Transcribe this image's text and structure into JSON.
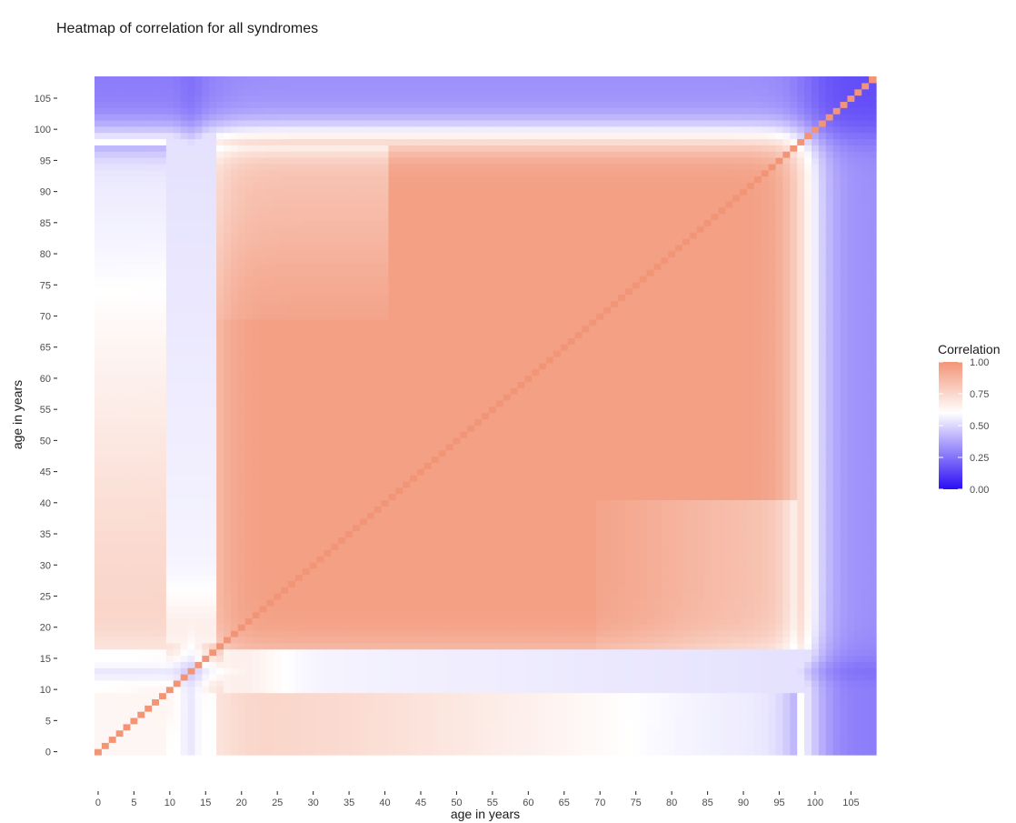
{
  "chart_data": {
    "type": "heatmap",
    "title": "Heatmap of correlation for all syndromes",
    "xlabel": "age in years",
    "ylabel": "age in years",
    "x_range": [
      0,
      108
    ],
    "y_range": [
      0,
      108
    ],
    "x_ticks": [
      0,
      5,
      10,
      15,
      20,
      25,
      30,
      35,
      40,
      45,
      50,
      55,
      60,
      65,
      70,
      75,
      80,
      85,
      90,
      95,
      100,
      105
    ],
    "y_ticks": [
      0,
      5,
      10,
      15,
      20,
      25,
      30,
      35,
      40,
      45,
      50,
      55,
      60,
      65,
      70,
      75,
      80,
      85,
      90,
      95,
      100,
      105
    ],
    "diagonal_value": 1.0,
    "regions": [
      {
        "ages": "17-95 x 17-95",
        "approx_correlation": "0.80-0.95"
      },
      {
        "ages": "0-16 x 0-16",
        "approx_correlation": "0.75-0.95"
      },
      {
        "ages": "11-15 x 17-108",
        "approx_correlation": "0.35-0.55"
      },
      {
        "ages": "98-108 x 0-108",
        "approx_correlation": "0.00-0.35"
      }
    ],
    "legend": {
      "title": "Correlation",
      "position": "right",
      "breaks": [
        {
          "value": 1.0,
          "label": "1.00"
        },
        {
          "value": 0.75,
          "label": "0.75"
        },
        {
          "value": 0.5,
          "label": "0.50"
        },
        {
          "value": 0.25,
          "label": "0.25"
        },
        {
          "value": 0.0,
          "label": "0.00"
        }
      ],
      "colors": {
        "low": "#2a0df5",
        "mid": "#ffffff",
        "high": "#f29577"
      },
      "midpoint": 0.6
    },
    "grid": false
  }
}
